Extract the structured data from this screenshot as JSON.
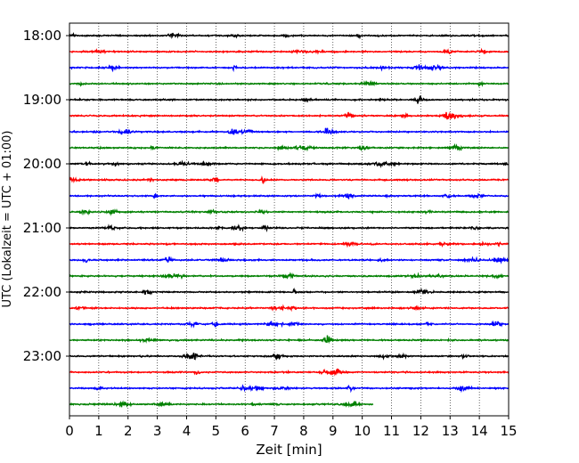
{
  "chart_data": {
    "type": "line",
    "xlabel": "Zeit  [min]",
    "ylabel": "UTC (Lokalzeit = UTC + 01:00)",
    "xlim": [
      0,
      15
    ],
    "x_ticks": [
      "0",
      "1",
      "2",
      "3",
      "4",
      "5",
      "6",
      "7",
      "8",
      "9",
      "10",
      "11",
      "12",
      "13",
      "14",
      "15"
    ],
    "y_tick_labels": [
      "18:00",
      "19:00",
      "20:00",
      "21:00",
      "22:00",
      "23:00"
    ],
    "grid": "vertical dotted at each minute",
    "trace_interval_minutes": 15,
    "trace_color_cycle": [
      "#000000",
      "#ff0000",
      "#0000ff",
      "#008000"
    ],
    "traces": [
      {
        "start": "18:00",
        "end_minute": 15
      },
      {
        "start": "18:15",
        "end_minute": 15
      },
      {
        "start": "18:30",
        "end_minute": 15
      },
      {
        "start": "18:45",
        "end_minute": 15
      },
      {
        "start": "19:00",
        "end_minute": 15
      },
      {
        "start": "19:15",
        "end_minute": 15
      },
      {
        "start": "19:30",
        "end_minute": 15
      },
      {
        "start": "19:45",
        "end_minute": 15
      },
      {
        "start": "20:00",
        "end_minute": 15
      },
      {
        "start": "20:15",
        "end_minute": 15
      },
      {
        "start": "20:30",
        "end_minute": 15
      },
      {
        "start": "20:45",
        "end_minute": 15
      },
      {
        "start": "21:00",
        "end_minute": 15
      },
      {
        "start": "21:15",
        "end_minute": 15
      },
      {
        "start": "21:30",
        "end_minute": 15
      },
      {
        "start": "21:45",
        "end_minute": 15
      },
      {
        "start": "22:00",
        "end_minute": 15
      },
      {
        "start": "22:15",
        "end_minute": 15
      },
      {
        "start": "22:30",
        "end_minute": 15
      },
      {
        "start": "22:45",
        "end_minute": 15
      },
      {
        "start": "23:00",
        "end_minute": 15
      },
      {
        "start": "23:15",
        "end_minute": 15
      },
      {
        "start": "23:30",
        "end_minute": 15
      },
      {
        "start": "23:45",
        "end_minute": 10.4
      }
    ]
  }
}
